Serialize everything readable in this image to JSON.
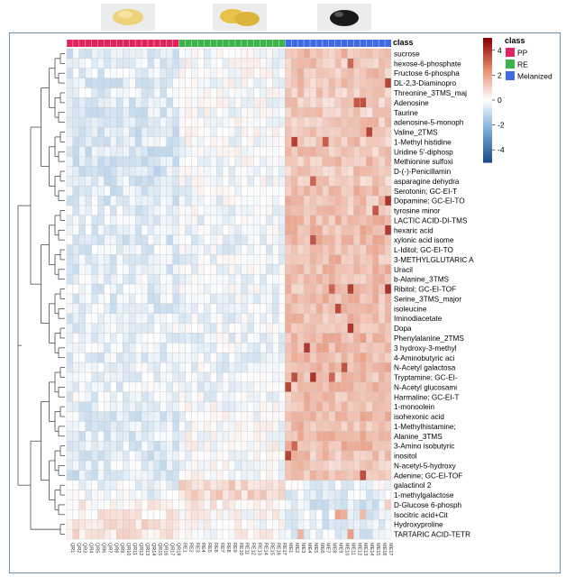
{
  "chart_data": {
    "type": "heatmap",
    "class_header": "class",
    "classes": [
      {
        "name": "PP",
        "color": "#e0245e"
      },
      {
        "name": "RE",
        "color": "#3cb44b"
      },
      {
        "name": "Melanized",
        "color": "#4169e1"
      }
    ],
    "columns_per_class": [
      18,
      17,
      17
    ],
    "rows": [
      "sucrose",
      "hexose-6-phosphate",
      "Fructose 6-phospha",
      "DL-2,3-Diaminopro",
      "Threonine_3TMS_maj",
      "Adenosine",
      "Taurine",
      "adenosine-5-monoph",
      "Valine_2TMS",
      "1-Methyl histidine",
      "Uridine 5'-diphosp",
      "Methionine sulfoxi",
      "D-(-)-Penicillamin",
      "asparagine dehydra",
      "Serotonin; GC-EI-T",
      "Dopamine; GC-EI-TO",
      "tyrosine minor",
      "LACTIC ACID-DI-TMS",
      "hexaric acid",
      "xylonic acid isome",
      "L-Iditol; GC-EI-TO",
      "3-METHYLGLUTARIC A",
      "Uracil",
      "b-Alanine_3TMS",
      "Ribitol; GC-EI-TOF",
      "Serine_3TMS_major",
      "isoleucine",
      "Iminodiacetate",
      "Dopa",
      "Phenylalanine_2TMS",
      "3 hydroxy-3-methyl",
      "4-Aminobutyric aci",
      "N-Acetyl galactosa",
      "Tryptamine; GC-EI-",
      "N-Acetyl glucosami",
      "Harmaline; GC-EI-T",
      "1-monoolein",
      "isohexonic acid",
      "1-Methylhistamine;",
      "Alanine_3TMS",
      "3-Amino isobutyric",
      "inositol",
      "N-acetyl-5-hydroxy",
      "Adenine; GC-EI-TOF",
      "galactinol 2",
      "1-methylgalactose",
      "D-Glucose 6-phosph",
      "Isocitric acid+Cit",
      "Hydroxyproline",
      "TARTARIC ACID-TETR"
    ],
    "row_pattern": [
      [
        -0.6,
        -0.2,
        1.4
      ],
      [
        -0.5,
        -0.1,
        1.3
      ],
      [
        -0.5,
        -0.1,
        1.3
      ],
      [
        -0.6,
        -0.1,
        1.2
      ],
      [
        -0.5,
        -0.1,
        1.2
      ],
      [
        -0.6,
        -0.1,
        1.1
      ],
      [
        -0.6,
        -0.1,
        1.1
      ],
      [
        -0.7,
        0.0,
        1.2
      ],
      [
        -0.7,
        -0.1,
        1.2
      ],
      [
        -0.6,
        -0.1,
        1.2
      ],
      [
        -0.7,
        0.0,
        1.2
      ],
      [
        -0.7,
        -0.1,
        1.3
      ],
      [
        -0.8,
        -0.1,
        1.2
      ],
      [
        -0.6,
        -0.1,
        1.1
      ],
      [
        -0.6,
        -0.2,
        1.4
      ],
      [
        -0.6,
        -0.2,
        1.4
      ],
      [
        -0.5,
        -0.2,
        1.3
      ],
      [
        -0.5,
        -0.3,
        1.5
      ],
      [
        -0.5,
        -0.3,
        1.5
      ],
      [
        -0.6,
        -0.3,
        1.5
      ],
      [
        -0.5,
        -0.3,
        1.4
      ],
      [
        -0.5,
        -0.3,
        1.4
      ],
      [
        -0.5,
        -0.3,
        1.5
      ],
      [
        -0.5,
        -0.3,
        1.4
      ],
      [
        -0.5,
        -0.2,
        1.4
      ],
      [
        -0.5,
        -0.3,
        1.5
      ],
      [
        -0.5,
        -0.3,
        1.4
      ],
      [
        -0.5,
        -0.3,
        1.4
      ],
      [
        -0.4,
        -0.3,
        1.5
      ],
      [
        -0.4,
        -0.3,
        1.6
      ],
      [
        -0.4,
        -0.3,
        1.5
      ],
      [
        -0.5,
        -0.3,
        1.5
      ],
      [
        -0.4,
        -0.3,
        1.5
      ],
      [
        -0.4,
        -0.3,
        1.4
      ],
      [
        -0.4,
        -0.3,
        1.4
      ],
      [
        -0.4,
        -0.2,
        1.4
      ],
      [
        -0.5,
        -0.1,
        1.4
      ],
      [
        -0.6,
        -0.1,
        1.5
      ],
      [
        -0.6,
        -0.1,
        1.4
      ],
      [
        -0.6,
        0.0,
        1.5
      ],
      [
        -0.6,
        0.0,
        1.5
      ],
      [
        -0.6,
        0.0,
        1.3
      ],
      [
        -0.6,
        -0.1,
        1.2
      ],
      [
        -0.7,
        0.0,
        1.3
      ],
      [
        -0.3,
        1.0,
        -0.3
      ],
      [
        -0.3,
        0.9,
        -0.4
      ],
      [
        0.3,
        0.3,
        -0.6
      ],
      [
        0.4,
        0.1,
        -0.5
      ],
      [
        0.8,
        0.0,
        -0.6
      ],
      [
        0.6,
        0.1,
        -0.5
      ]
    ],
    "col_labels": [
      "QR1",
      "QR2",
      "QR3",
      "QR4",
      "QR5",
      "QR6",
      "QR7",
      "QR8",
      "QR9",
      "QR10",
      "QR11",
      "QR12",
      "QR13",
      "QR14",
      "QR15",
      "QR16",
      "QR17",
      "QR18",
      "RE1",
      "RE2",
      "RE3",
      "RE4",
      "RE5",
      "RE6",
      "RE7",
      "RE8",
      "RE9",
      "RE10",
      "RE11",
      "RE12",
      "RE13",
      "RE14",
      "RE15",
      "RE16",
      "RE17",
      "ME1",
      "ME2",
      "ME3",
      "ME4",
      "ME5",
      "ME6",
      "ME7",
      "ME8",
      "ME9",
      "ME10",
      "ME11",
      "ME12",
      "ME13",
      "ME14",
      "ME15",
      "ME16",
      "ME17"
    ],
    "colorbar": {
      "min": -5,
      "max": 5,
      "ticks": [
        4,
        2,
        0,
        -2,
        -4
      ],
      "low_color": "#1f4e8c",
      "mid_color": "#ffffff",
      "high_color": "#8b0000"
    },
    "legend_position": "right"
  },
  "images": [
    {
      "name": "pp-sample-image",
      "color": "#e8c86a"
    },
    {
      "name": "re-sample-image",
      "color": "#e5c24f"
    },
    {
      "name": "melanized-sample-image",
      "color": "#1a1a1a"
    }
  ]
}
